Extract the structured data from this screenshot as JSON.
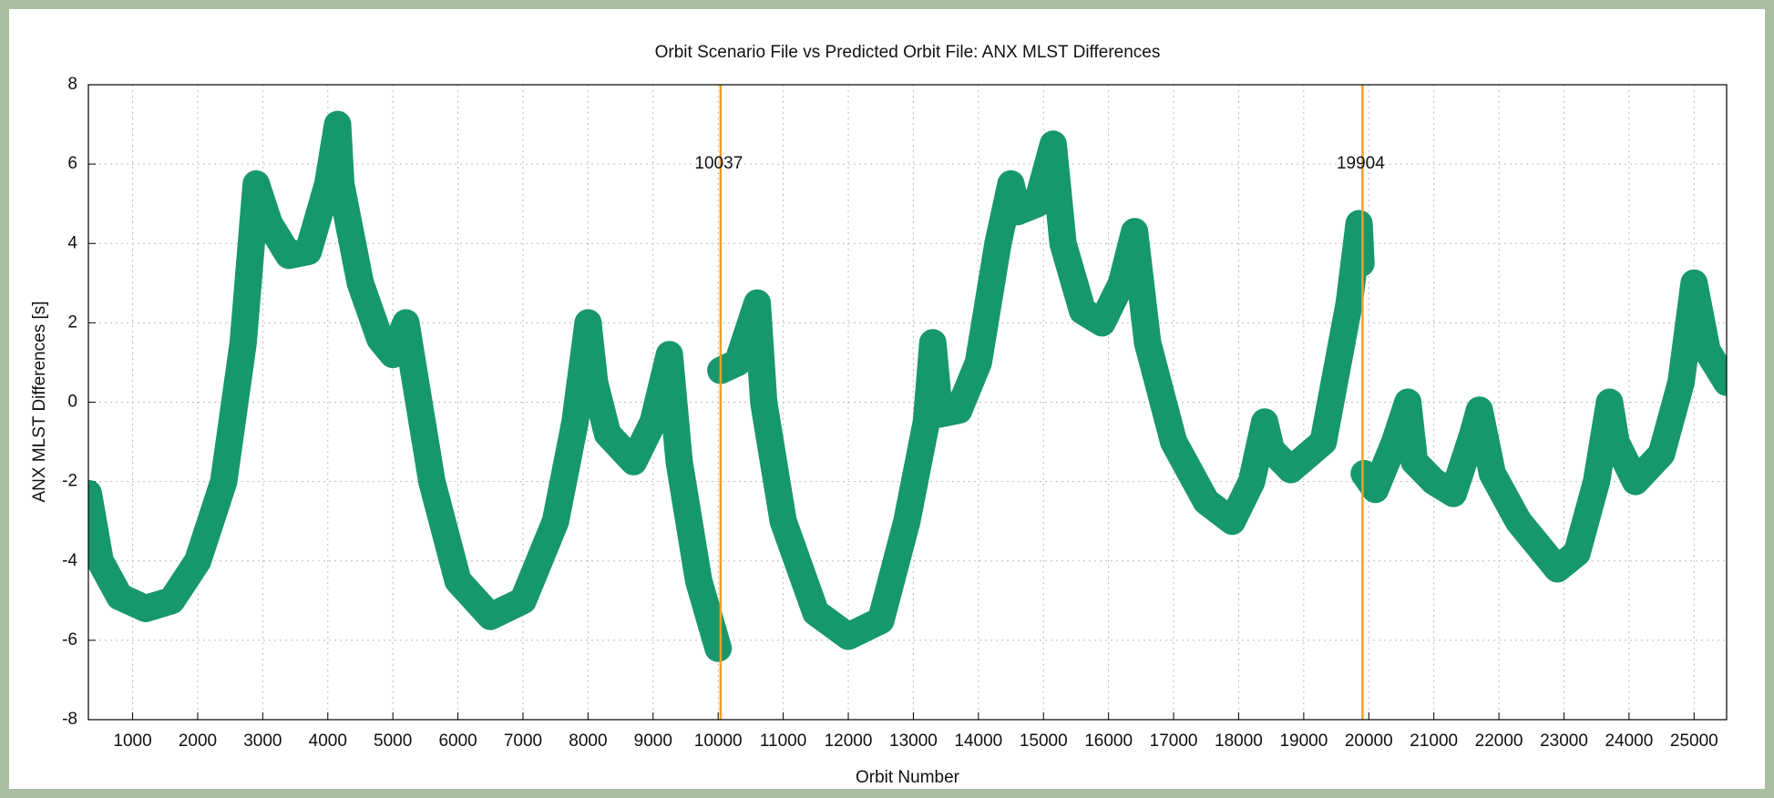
{
  "chart_data": {
    "type": "line",
    "title": "Orbit Scenario File vs Predicted Orbit File: ANX MLST Differences",
    "x_label": "Orbit Number",
    "y_label": "ANX MLST Differences [s]",
    "xlim": [
      320,
      25500
    ],
    "xticks": [
      1000,
      2000,
      3000,
      4000,
      5000,
      6000,
      7000,
      8000,
      9000,
      10000,
      11000,
      12000,
      13000,
      14000,
      15000,
      16000,
      17000,
      18000,
      19000,
      20000,
      21000,
      22000,
      23000,
      24000,
      25000
    ],
    "ylim": [
      -8,
      8
    ],
    "yticks": [
      -8,
      -6,
      -4,
      -2,
      0,
      2,
      4,
      6,
      8
    ],
    "grid": true,
    "vlines": [
      10037,
      19904
    ],
    "vline_color": "#f0a020",
    "series": [
      {
        "name": "ANX MLST Differences",
        "color": "#17986c",
        "x": [
          320,
          500,
          800,
          1200,
          1600,
          2000,
          2400,
          2700,
          2900,
          3100,
          3400,
          3700,
          4000,
          4150,
          4200,
          4500,
          4800,
          5000,
          5200,
          5300,
          5600,
          6000,
          6500,
          7000,
          7500,
          7800,
          8000,
          8100,
          8300,
          8700,
          9000,
          9250,
          9400,
          9700,
          10000,
          10037,
          10040,
          10300,
          10600,
          10700,
          11000,
          11500,
          12000,
          12500,
          12900,
          13200,
          13300,
          13400,
          13700,
          14000,
          14300,
          14500,
          14600,
          14900,
          15150,
          15300,
          15600,
          15900,
          16200,
          16400,
          16600,
          17000,
          17500,
          17900,
          18200,
          18400,
          18500,
          18800,
          19300,
          19700,
          19850,
          19880,
          19904,
          19930,
          20100,
          20400,
          20600,
          20700,
          21000,
          21300,
          21600,
          21700,
          21900,
          22300,
          22900,
          23200,
          23500,
          23700,
          23800,
          24100,
          24500,
          24800,
          25000,
          25200,
          25500
        ],
        "values": [
          -2.3,
          -4.0,
          -4.9,
          -5.2,
          -5.0,
          -4.0,
          -2.0,
          1.5,
          5.5,
          4.5,
          3.7,
          3.8,
          5.5,
          7.0,
          5.5,
          3.0,
          1.6,
          1.2,
          2.0,
          1.0,
          -2.0,
          -4.5,
          -5.4,
          -5.0,
          -3.0,
          -0.5,
          2.0,
          0.5,
          -0.8,
          -1.5,
          -0.5,
          1.2,
          -1.5,
          -4.5,
          -6.2,
          null,
          0.8,
          1.0,
          2.5,
          0.0,
          -3.0,
          -5.3,
          -5.9,
          -5.5,
          -3.0,
          -0.5,
          1.5,
          -0.3,
          -0.2,
          1.0,
          4.0,
          5.5,
          4.8,
          5.0,
          6.5,
          4.0,
          2.3,
          2.0,
          3.0,
          4.3,
          1.5,
          -1.0,
          -2.5,
          -3.0,
          -2.0,
          -0.5,
          -1.2,
          -1.7,
          -1.0,
          2.5,
          4.5,
          3.5,
          null,
          -1.8,
          -2.2,
          -1.0,
          0.0,
          -1.5,
          -2.0,
          -2.3,
          -0.8,
          -0.2,
          -1.8,
          -3.0,
          -4.2,
          -3.8,
          -2.0,
          0.0,
          -1.0,
          -2.0,
          -1.3,
          0.5,
          3.0,
          1.3,
          0.5
        ]
      }
    ]
  }
}
